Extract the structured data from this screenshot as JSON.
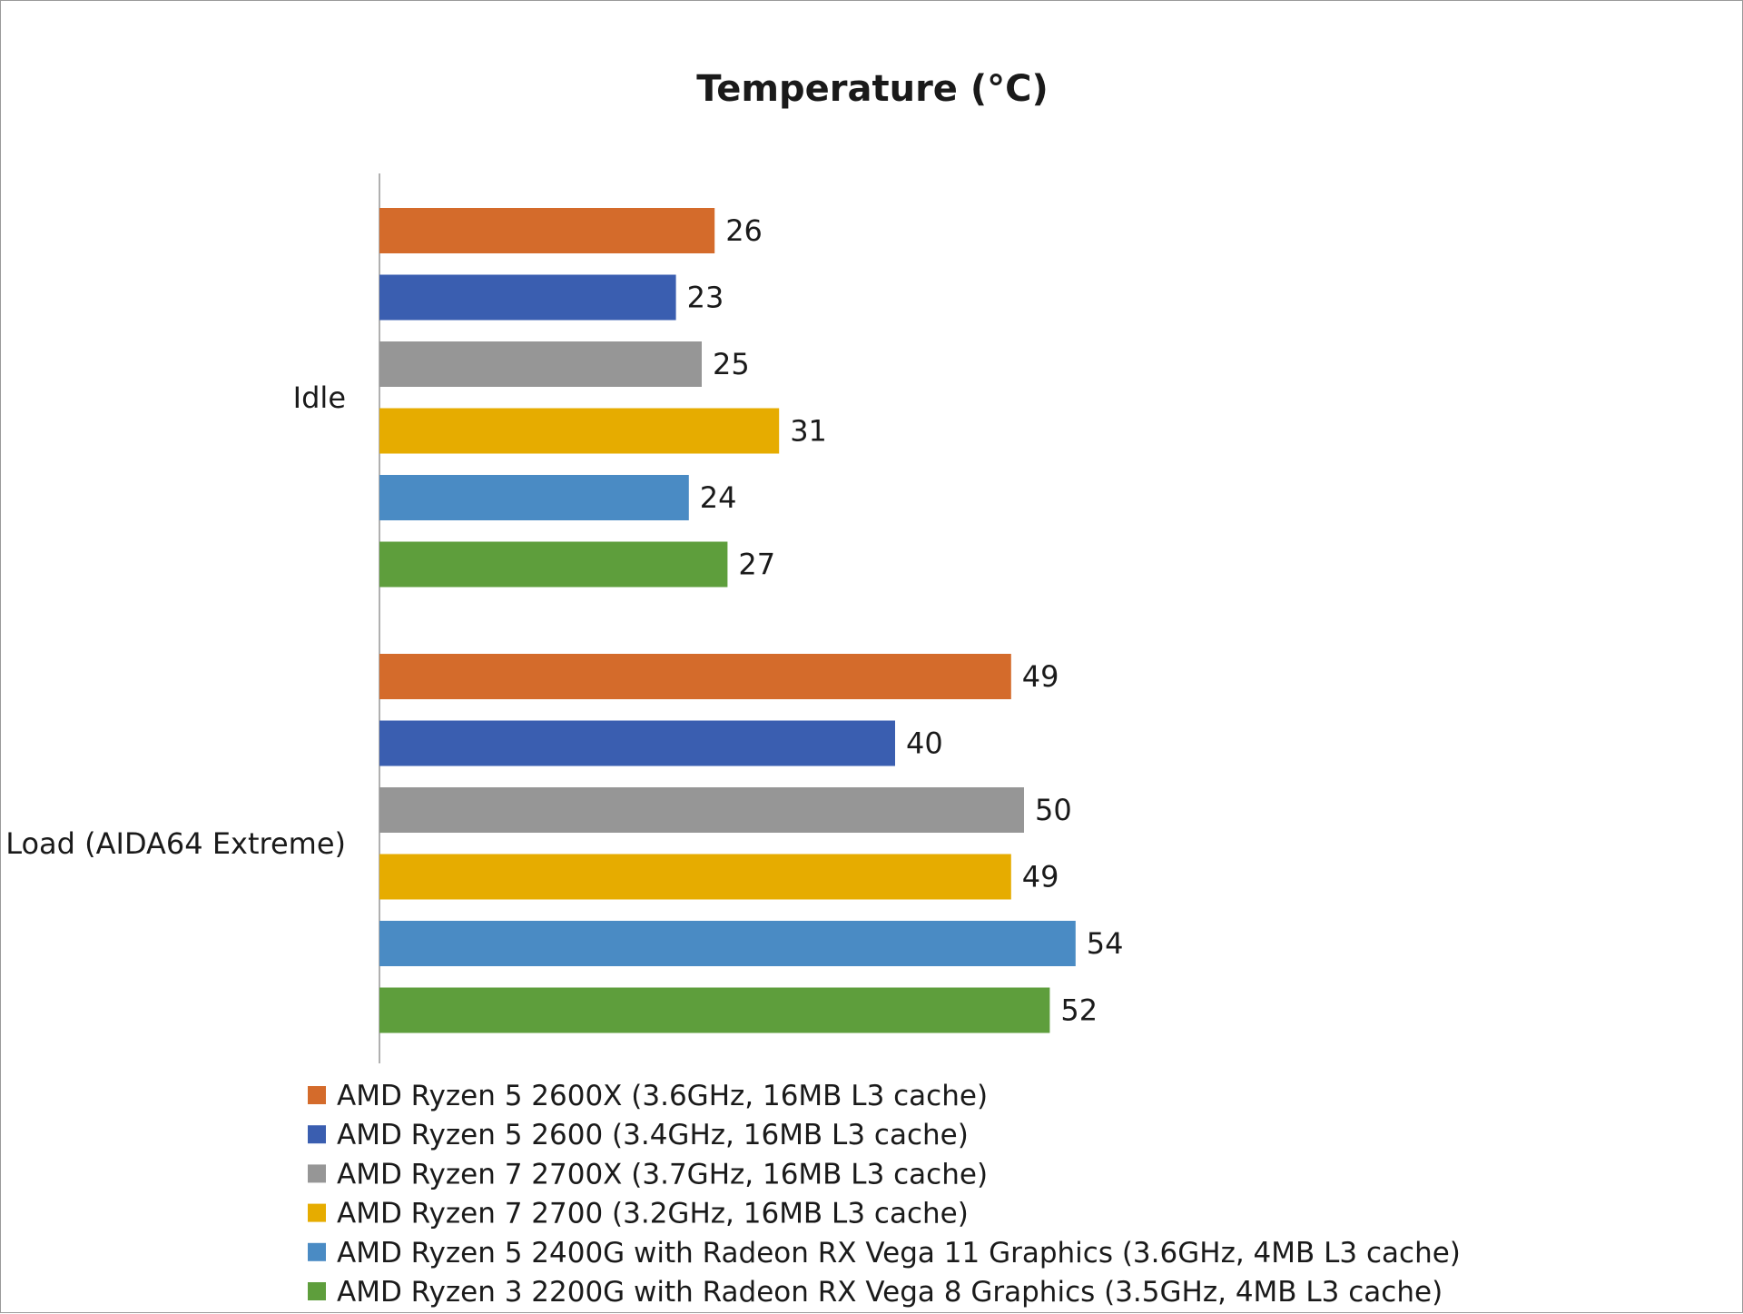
{
  "chart_data": {
    "type": "bar",
    "orientation": "horizontal",
    "title": "Temperature (°C)",
    "xlabel": "",
    "ylabel": "",
    "xlim": [
      0,
      60
    ],
    "grid": false,
    "legend_position": "bottom",
    "categories": [
      "Idle",
      "Load (AIDA64 Extreme)"
    ],
    "series": [
      {
        "name": "AMD Ryzen 5 2600X (3.6GHz, 16MB L3 cache)",
        "color": "#D46B2B",
        "values": [
          26,
          49
        ]
      },
      {
        "name": "AMD Ryzen 5 2600 (3.4GHz, 16MB L3 cache)",
        "color": "#3A5EB0",
        "values": [
          23,
          40
        ]
      },
      {
        "name": "AMD Ryzen 7 2700X (3.7GHz, 16MB L3 cache)",
        "color": "#969696",
        "values": [
          25,
          50
        ]
      },
      {
        "name": "AMD Ryzen 7 2700 (3.2GHz, 16MB L3 cache)",
        "color": "#E6AC00",
        "values": [
          31,
          49
        ]
      },
      {
        "name": "AMD Ryzen 5 2400G with Radeon RX Vega 11 Graphics (3.6GHz, 4MB L3 cache)",
        "color": "#4A8BC4",
        "values": [
          24,
          54
        ]
      },
      {
        "name": "AMD Ryzen 3 2200G with Radeon RX Vega 8 Graphics (3.5GHz, 4MB L3 cache)",
        "color": "#5E9E3C",
        "values": [
          27,
          52
        ]
      }
    ]
  }
}
